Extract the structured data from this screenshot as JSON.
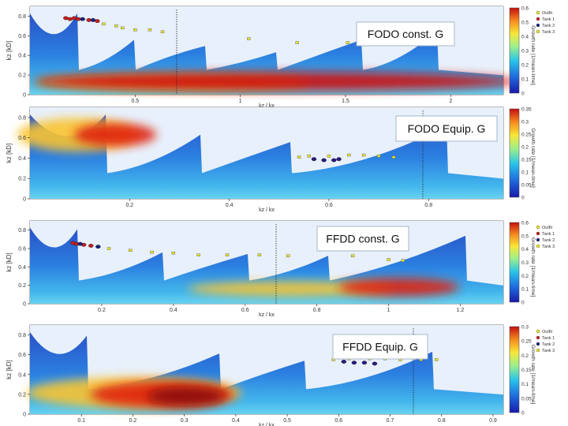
{
  "chart_data": [
    {
      "type": "heatmap",
      "title": "FODO const. G",
      "xlabel": "kz / kx",
      "ylabel": "kz [kD]",
      "colorbar_label": "Growth rate [1/mean-time]",
      "xlim": [
        0,
        2.25
      ],
      "ylim": [
        0,
        0.9
      ],
      "xticks": [
        "0.5",
        "1",
        "1.5",
        "2"
      ],
      "yticks": [
        "0",
        "0.2",
        "0.4",
        "0.6",
        "0.8"
      ],
      "cticks": [
        "0",
        "0.1",
        "0.2",
        "0.3",
        "0.4",
        "0.5",
        "0.6"
      ],
      "legend": [
        "Outflr",
        "Tank 1",
        "Tank 2",
        "Tank 3"
      ],
      "marker_groups": [
        {
          "name": "Tank 1",
          "color": "#c81e1e",
          "points": [
            [
              0.17,
              0.78
            ],
            [
              0.19,
              0.77
            ],
            [
              0.21,
              0.78
            ],
            [
              0.23,
              0.77
            ],
            [
              0.28,
              0.76
            ],
            [
              0.32,
              0.75
            ]
          ]
        },
        {
          "name": "Tank 2",
          "color": "#1a237e",
          "points": [
            [
              0.25,
              0.77
            ],
            [
              0.3,
              0.76
            ]
          ]
        },
        {
          "name": "Outflr",
          "color": "#e8e32a",
          "points": [
            [
              0.35,
              0.72
            ],
            [
              0.41,
              0.7
            ],
            [
              0.44,
              0.68
            ],
            [
              0.5,
              0.66
            ],
            [
              0.57,
              0.66
            ],
            [
              0.63,
              0.64
            ],
            [
              1.04,
              0.57
            ],
            [
              1.27,
              0.53
            ],
            [
              1.51,
              0.53
            ],
            [
              1.83,
              0.53
            ]
          ]
        }
      ]
    },
    {
      "type": "heatmap",
      "title": "FODO Equip. G",
      "xlabel": "kz / kx",
      "ylabel": "kz [kD]",
      "colorbar_label": "Growth rate [1/mean-time]",
      "xlim": [
        0,
        0.95
      ],
      "ylim": [
        0,
        0.9
      ],
      "xticks": [
        "0.2",
        "0.4",
        "0.6",
        "0.8"
      ],
      "yticks": [
        "0",
        "0.2",
        "0.4",
        "0.6",
        "0.8"
      ],
      "cticks": [
        "0",
        "0.05",
        "0.1",
        "0.15",
        "0.2",
        "0.25",
        "0.3",
        "0.35"
      ],
      "legend": [],
      "marker_groups": [
        {
          "name": "Tank 1",
          "color": "#2a1a7e",
          "points": [
            [
              0.57,
              0.39
            ],
            [
              0.59,
              0.38
            ],
            [
              0.61,
              0.38
            ],
            [
              0.62,
              0.39
            ]
          ]
        },
        {
          "name": "Outflr",
          "color": "#e8e32a",
          "points": [
            [
              0.54,
              0.41
            ],
            [
              0.56,
              0.42
            ],
            [
              0.6,
              0.42
            ],
            [
              0.64,
              0.43
            ],
            [
              0.67,
              0.43
            ],
            [
              0.7,
              0.42
            ],
            [
              0.73,
              0.41
            ]
          ]
        }
      ]
    },
    {
      "type": "heatmap",
      "title": "FFDD const. G",
      "xlabel": "kz / kx",
      "ylabel": "kz [kD]",
      "colorbar_label": "Growth rate [1/mean-time]",
      "xlim": [
        0,
        1.32
      ],
      "ylim": [
        0,
        0.9
      ],
      "xticks": [
        "0.2",
        "0.4",
        "0.6",
        "0.8",
        "1",
        "1.2"
      ],
      "yticks": [
        "0",
        "0.2",
        "0.4",
        "0.6",
        "0.8"
      ],
      "cticks": [
        "0",
        "0.1",
        "0.2",
        "0.3",
        "0.4",
        "0.5",
        "0.6"
      ],
      "legend": [
        "Outflr",
        "Tank 1",
        "Tank 2",
        "Tank 3"
      ],
      "marker_groups": [
        {
          "name": "Tank 1",
          "color": "#c81e1e",
          "points": [
            [
              0.12,
              0.66
            ],
            [
              0.13,
              0.65
            ],
            [
              0.15,
              0.64
            ],
            [
              0.17,
              0.63
            ]
          ]
        },
        {
          "name": "Tank 2",
          "color": "#1a237e",
          "points": [
            [
              0.14,
              0.65
            ],
            [
              0.19,
              0.62
            ]
          ]
        },
        {
          "name": "Outflr",
          "color": "#e8e32a",
          "points": [
            [
              0.22,
              0.6
            ],
            [
              0.28,
              0.58
            ],
            [
              0.34,
              0.56
            ],
            [
              0.4,
              0.55
            ],
            [
              0.47,
              0.53
            ],
            [
              0.55,
              0.53
            ],
            [
              0.64,
              0.53
            ],
            [
              0.72,
              0.52
            ],
            [
              0.9,
              0.52
            ],
            [
              1.0,
              0.48
            ],
            [
              1.04,
              0.47
            ]
          ]
        }
      ]
    },
    {
      "type": "heatmap",
      "title": "FFDD Equip. G",
      "xlabel": "kz / kx",
      "ylabel": "kz [kD]",
      "colorbar_label": "Growth rate [1/mean-time]",
      "xlim": [
        0,
        0.92
      ],
      "ylim": [
        0,
        0.9
      ],
      "xticks": [
        "0.1",
        "0.2",
        "0.3",
        "0.4",
        "0.5",
        "0.6",
        "0.7",
        "0.8",
        "0.9"
      ],
      "yticks": [
        "0",
        "0.2",
        "0.4",
        "0.6",
        "0.8"
      ],
      "cticks": [
        "0",
        "0.05",
        "0.1",
        "0.15",
        "0.2",
        "0.25",
        "0.3"
      ],
      "legend": [
        "Outflr",
        "Tank 1",
        "Tank 2",
        "Tank 3"
      ],
      "marker_groups": [
        {
          "name": "Tank 1",
          "color": "#2a1a7e",
          "points": [
            [
              0.61,
              0.53
            ],
            [
              0.63,
              0.52
            ],
            [
              0.65,
              0.52
            ],
            [
              0.67,
              0.51
            ]
          ]
        },
        {
          "name": "Outflr",
          "color": "#e8e32a",
          "points": [
            [
              0.59,
              0.55
            ],
            [
              0.62,
              0.56
            ],
            [
              0.66,
              0.56
            ],
            [
              0.69,
              0.56
            ],
            [
              0.72,
              0.55
            ],
            [
              0.76,
              0.55
            ],
            [
              0.79,
              0.55
            ]
          ]
        }
      ]
    }
  ]
}
